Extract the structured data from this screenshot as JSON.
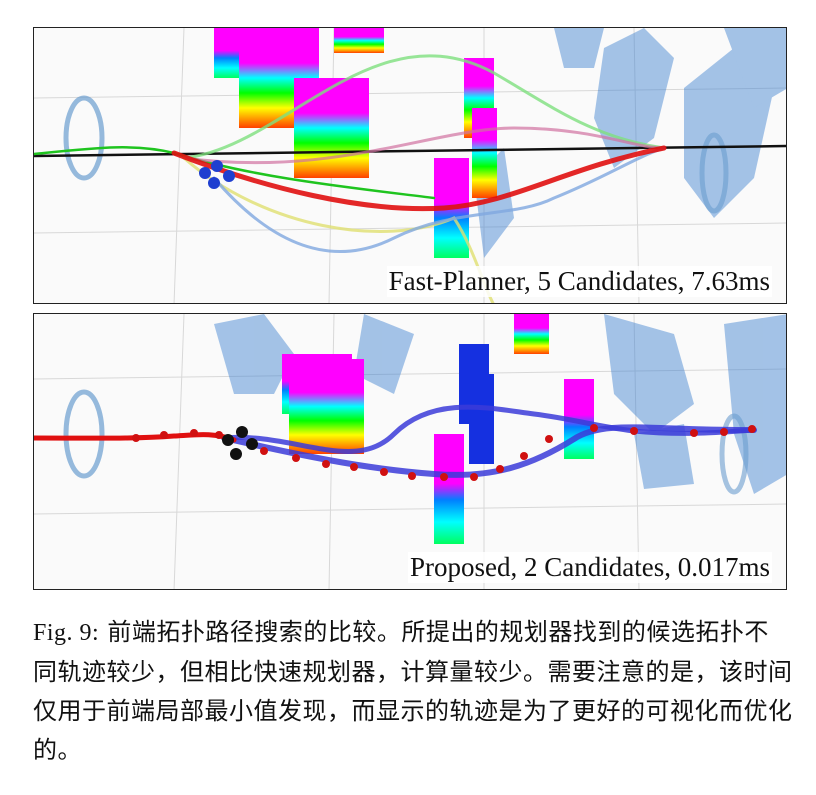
{
  "panels": [
    {
      "label": "Fast-Planner, 5 Candidates, 7.63ms"
    },
    {
      "label": "Proposed, 2 Candidates, 0.017ms"
    }
  ],
  "caption": {
    "fig_label": "Fig. 9:",
    "text": "前端拓扑路径搜索的比较。所提出的规划器找到的候选拓扑不同轨迹较少，但相比快速规划器，计算量较少。需要注意的是，该时间仅用于前端局部最小值发现，而显示的轨迹是为了更好的可视化而优化的。"
  },
  "colors": {
    "best_trajectory": "#e01010",
    "candidate_blue": "#3b3bd8",
    "obstacle_magenta": "#ee22ee",
    "obstacle_blue": "#1530e0",
    "tree_blue": "#3a7fd0"
  }
}
